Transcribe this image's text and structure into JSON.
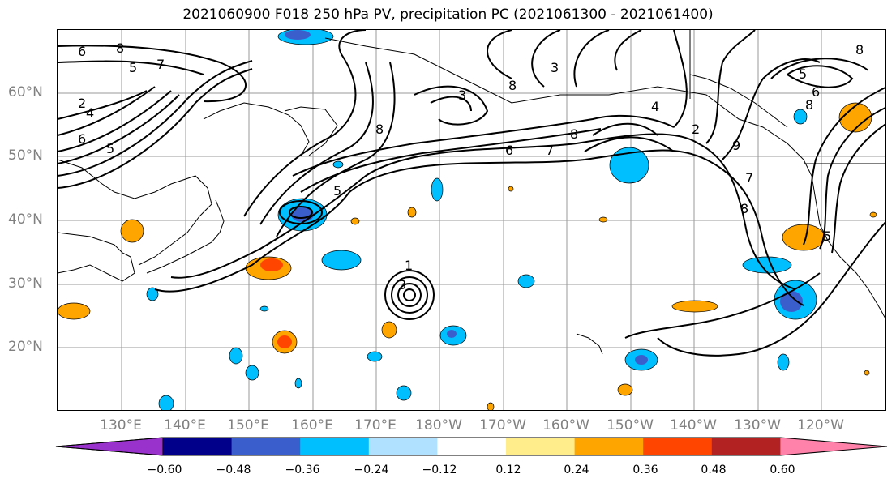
{
  "title": "2021060900 F018 250 hPa PV, precipitation PC (2021061300 - 2021061400)",
  "lat_labels": [
    "60°N",
    "50°N",
    "40°N",
    "30°N",
    "20°N"
  ],
  "lon_labels": [
    "130°E",
    "140°E",
    "150°E",
    "160°E",
    "170°E",
    "180°W",
    "170°W",
    "160°W",
    "150°W",
    "140°W",
    "130°W",
    "120°W"
  ],
  "colorbar": {
    "colors": [
      "#9932cc",
      "#00008b",
      "#3a5fcd",
      "#00bfff",
      "#b0e2ff",
      "#ffffff",
      "#ffec8b",
      "#ffa500",
      "#ff4500",
      "#b22222",
      "#ff82ab"
    ],
    "ticks": [
      "−0.60",
      "−0.48",
      "−0.36",
      "−0.24",
      "−0.12",
      "0.12",
      "0.24",
      "0.36",
      "0.48",
      "0.60"
    ]
  },
  "contour_labels": [
    "6",
    "8",
    "5",
    "7",
    "2",
    "4",
    "6",
    "5",
    "3",
    "8",
    "8",
    "6",
    "7",
    "8",
    "4",
    "5",
    "3",
    "5",
    "6",
    "8",
    "2",
    "9",
    "7",
    "8",
    "8",
    "5",
    "1",
    "3"
  ]
}
